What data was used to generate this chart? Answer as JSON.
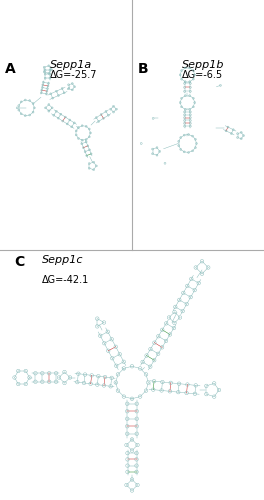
{
  "panel_labels": [
    "A",
    "B",
    "C"
  ],
  "panel_titles": [
    "Sepp1a",
    "Sepp1b",
    "Sepp1c"
  ],
  "delta_g": [
    "ΔG=-25.7",
    "ΔG=-6.5",
    "ΔG=-42.1"
  ],
  "bg_color": "#ffffff",
  "sc": "#8bbcbb",
  "rc": "#cc2222",
  "gc": "#228822",
  "border_color": "#aaaaaa",
  "label_fontsize": 10,
  "title_fontsize": 8,
  "dg_fontsize": 7
}
